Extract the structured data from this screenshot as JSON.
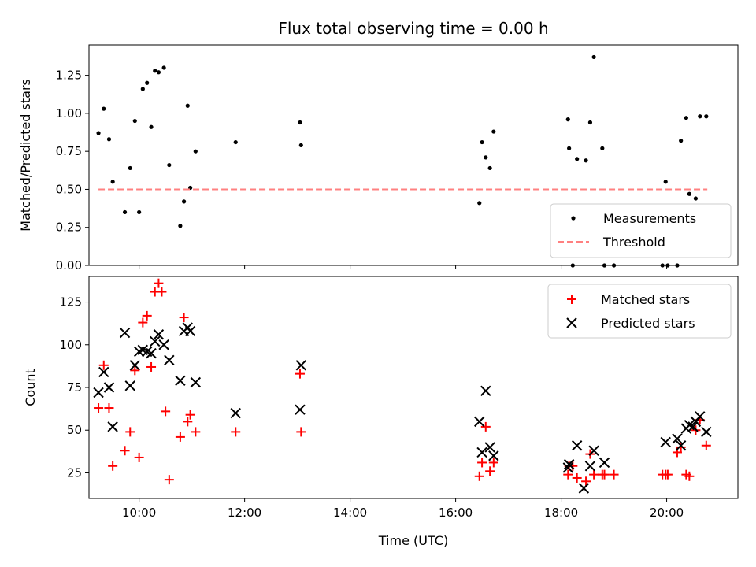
{
  "chart_data": [
    {
      "type": "scatter",
      "title": "Flux total observing time = 0.00 h",
      "xlabel": "",
      "ylabel": "Matched/Predicted stars",
      "xlim": [
        9.05,
        21.35
      ],
      "ylim": [
        0.0,
        1.45
      ],
      "yticks": [
        "0.00",
        "0.25",
        "0.50",
        "0.75",
        "1.00",
        "1.25"
      ],
      "yticks_values": [
        0.0,
        0.25,
        0.5,
        0.75,
        1.0,
        1.25
      ],
      "legend": "lower-right",
      "series": [
        {
          "name": "Measurements",
          "marker": "dot",
          "color": "#000000",
          "x": [
            9.23,
            9.33,
            9.43,
            9.5,
            9.73,
            9.83,
            9.92,
            10.0,
            10.07,
            10.15,
            10.23,
            10.3,
            10.37,
            10.47,
            10.57,
            10.78,
            10.85,
            10.92,
            10.97,
            11.07,
            11.83,
            13.05,
            13.07,
            16.45,
            16.5,
            16.57,
            16.65,
            16.72,
            18.13,
            18.15,
            18.22,
            18.3,
            18.47,
            18.55,
            18.62,
            18.78,
            18.82,
            19.0,
            19.92,
            19.98,
            20.02,
            20.2,
            20.27,
            20.37,
            20.43,
            20.55,
            20.63,
            20.75
          ],
          "y": [
            0.87,
            1.03,
            0.83,
            0.55,
            0.35,
            0.64,
            0.95,
            0.35,
            1.16,
            1.2,
            0.91,
            1.28,
            1.27,
            1.3,
            0.66,
            0.26,
            0.42,
            1.05,
            0.51,
            0.75,
            0.81,
            0.94,
            0.79,
            0.41,
            0.81,
            0.71,
            0.64,
            0.88,
            0.96,
            0.77,
            0.0,
            0.7,
            0.69,
            0.94,
            1.37,
            0.77,
            0.0,
            0.0,
            0.0,
            0.55,
            0.0,
            0.0,
            0.82,
            0.97,
            0.47,
            0.44,
            0.98,
            0.98
          ]
        },
        {
          "name": "Threshold",
          "marker": "dashed-line",
          "color": "#ff8080",
          "x": [
            9.23,
            20.77
          ],
          "y": [
            0.5,
            0.5
          ]
        }
      ]
    },
    {
      "type": "scatter",
      "title": "",
      "xlabel": "Time (UTC)",
      "ylabel": "Count",
      "xlim": [
        9.05,
        21.35
      ],
      "ylim": [
        10,
        140
      ],
      "xticks": [
        "10:00",
        "12:00",
        "14:00",
        "16:00",
        "18:00",
        "20:00"
      ],
      "xticks_values": [
        10,
        12,
        14,
        16,
        18,
        20
      ],
      "yticks": [
        "25",
        "50",
        "75",
        "100",
        "125"
      ],
      "yticks_values": [
        25,
        50,
        75,
        100,
        125
      ],
      "legend": "top-right",
      "series": [
        {
          "name": "Matched stars",
          "marker": "plus",
          "color": "#ff0000",
          "x": [
            9.23,
            9.33,
            9.43,
            9.5,
            9.73,
            9.83,
            9.92,
            10.0,
            10.07,
            10.15,
            10.23,
            10.3,
            10.37,
            10.43,
            10.5,
            10.57,
            10.78,
            10.85,
            10.92,
            10.97,
            11.07,
            11.83,
            13.05,
            13.07,
            16.45,
            16.5,
            16.57,
            16.65,
            16.72,
            18.13,
            18.15,
            18.22,
            18.3,
            18.47,
            18.55,
            18.62,
            18.78,
            18.82,
            19.0,
            19.92,
            19.98,
            20.02,
            20.2,
            20.27,
            20.37,
            20.43,
            20.55,
            20.63,
            20.75
          ],
          "y": [
            63,
            88,
            63,
            29,
            38,
            49,
            85,
            34,
            113,
            117,
            87,
            131,
            136,
            131,
            61,
            21,
            46,
            116,
            55,
            59,
            49,
            49,
            83,
            49,
            23,
            31,
            52,
            26,
            31,
            24,
            29,
            29,
            22,
            20,
            36,
            24,
            24,
            24,
            24,
            24,
            24,
            24,
            37,
            40,
            24,
            23,
            50,
            56,
            41
          ]
        },
        {
          "name": "Predicted stars",
          "marker": "x",
          "color": "#000000",
          "x": [
            9.23,
            9.33,
            9.43,
            9.5,
            9.73,
            9.83,
            9.92,
            10.0,
            10.07,
            10.15,
            10.23,
            10.3,
            10.37,
            10.47,
            10.57,
            10.78,
            10.85,
            10.92,
            10.97,
            11.07,
            11.83,
            13.05,
            13.07,
            16.45,
            16.5,
            16.57,
            16.65,
            16.72,
            18.13,
            18.15,
            18.3,
            18.43,
            18.55,
            18.62,
            18.82,
            19.98,
            20.2,
            20.27,
            20.37,
            20.43,
            20.5,
            20.55,
            20.63,
            20.75
          ],
          "y": [
            72,
            84,
            75,
            52,
            107,
            76,
            88,
            96,
            97,
            96,
            95,
            102,
            106,
            100,
            91,
            79,
            108,
            110,
            108,
            78,
            60,
            62,
            88,
            55,
            37,
            73,
            40,
            35,
            28,
            30,
            41,
            16,
            29,
            38,
            31,
            43,
            45,
            41,
            51,
            53,
            52,
            55,
            58,
            49
          ]
        }
      ]
    }
  ]
}
